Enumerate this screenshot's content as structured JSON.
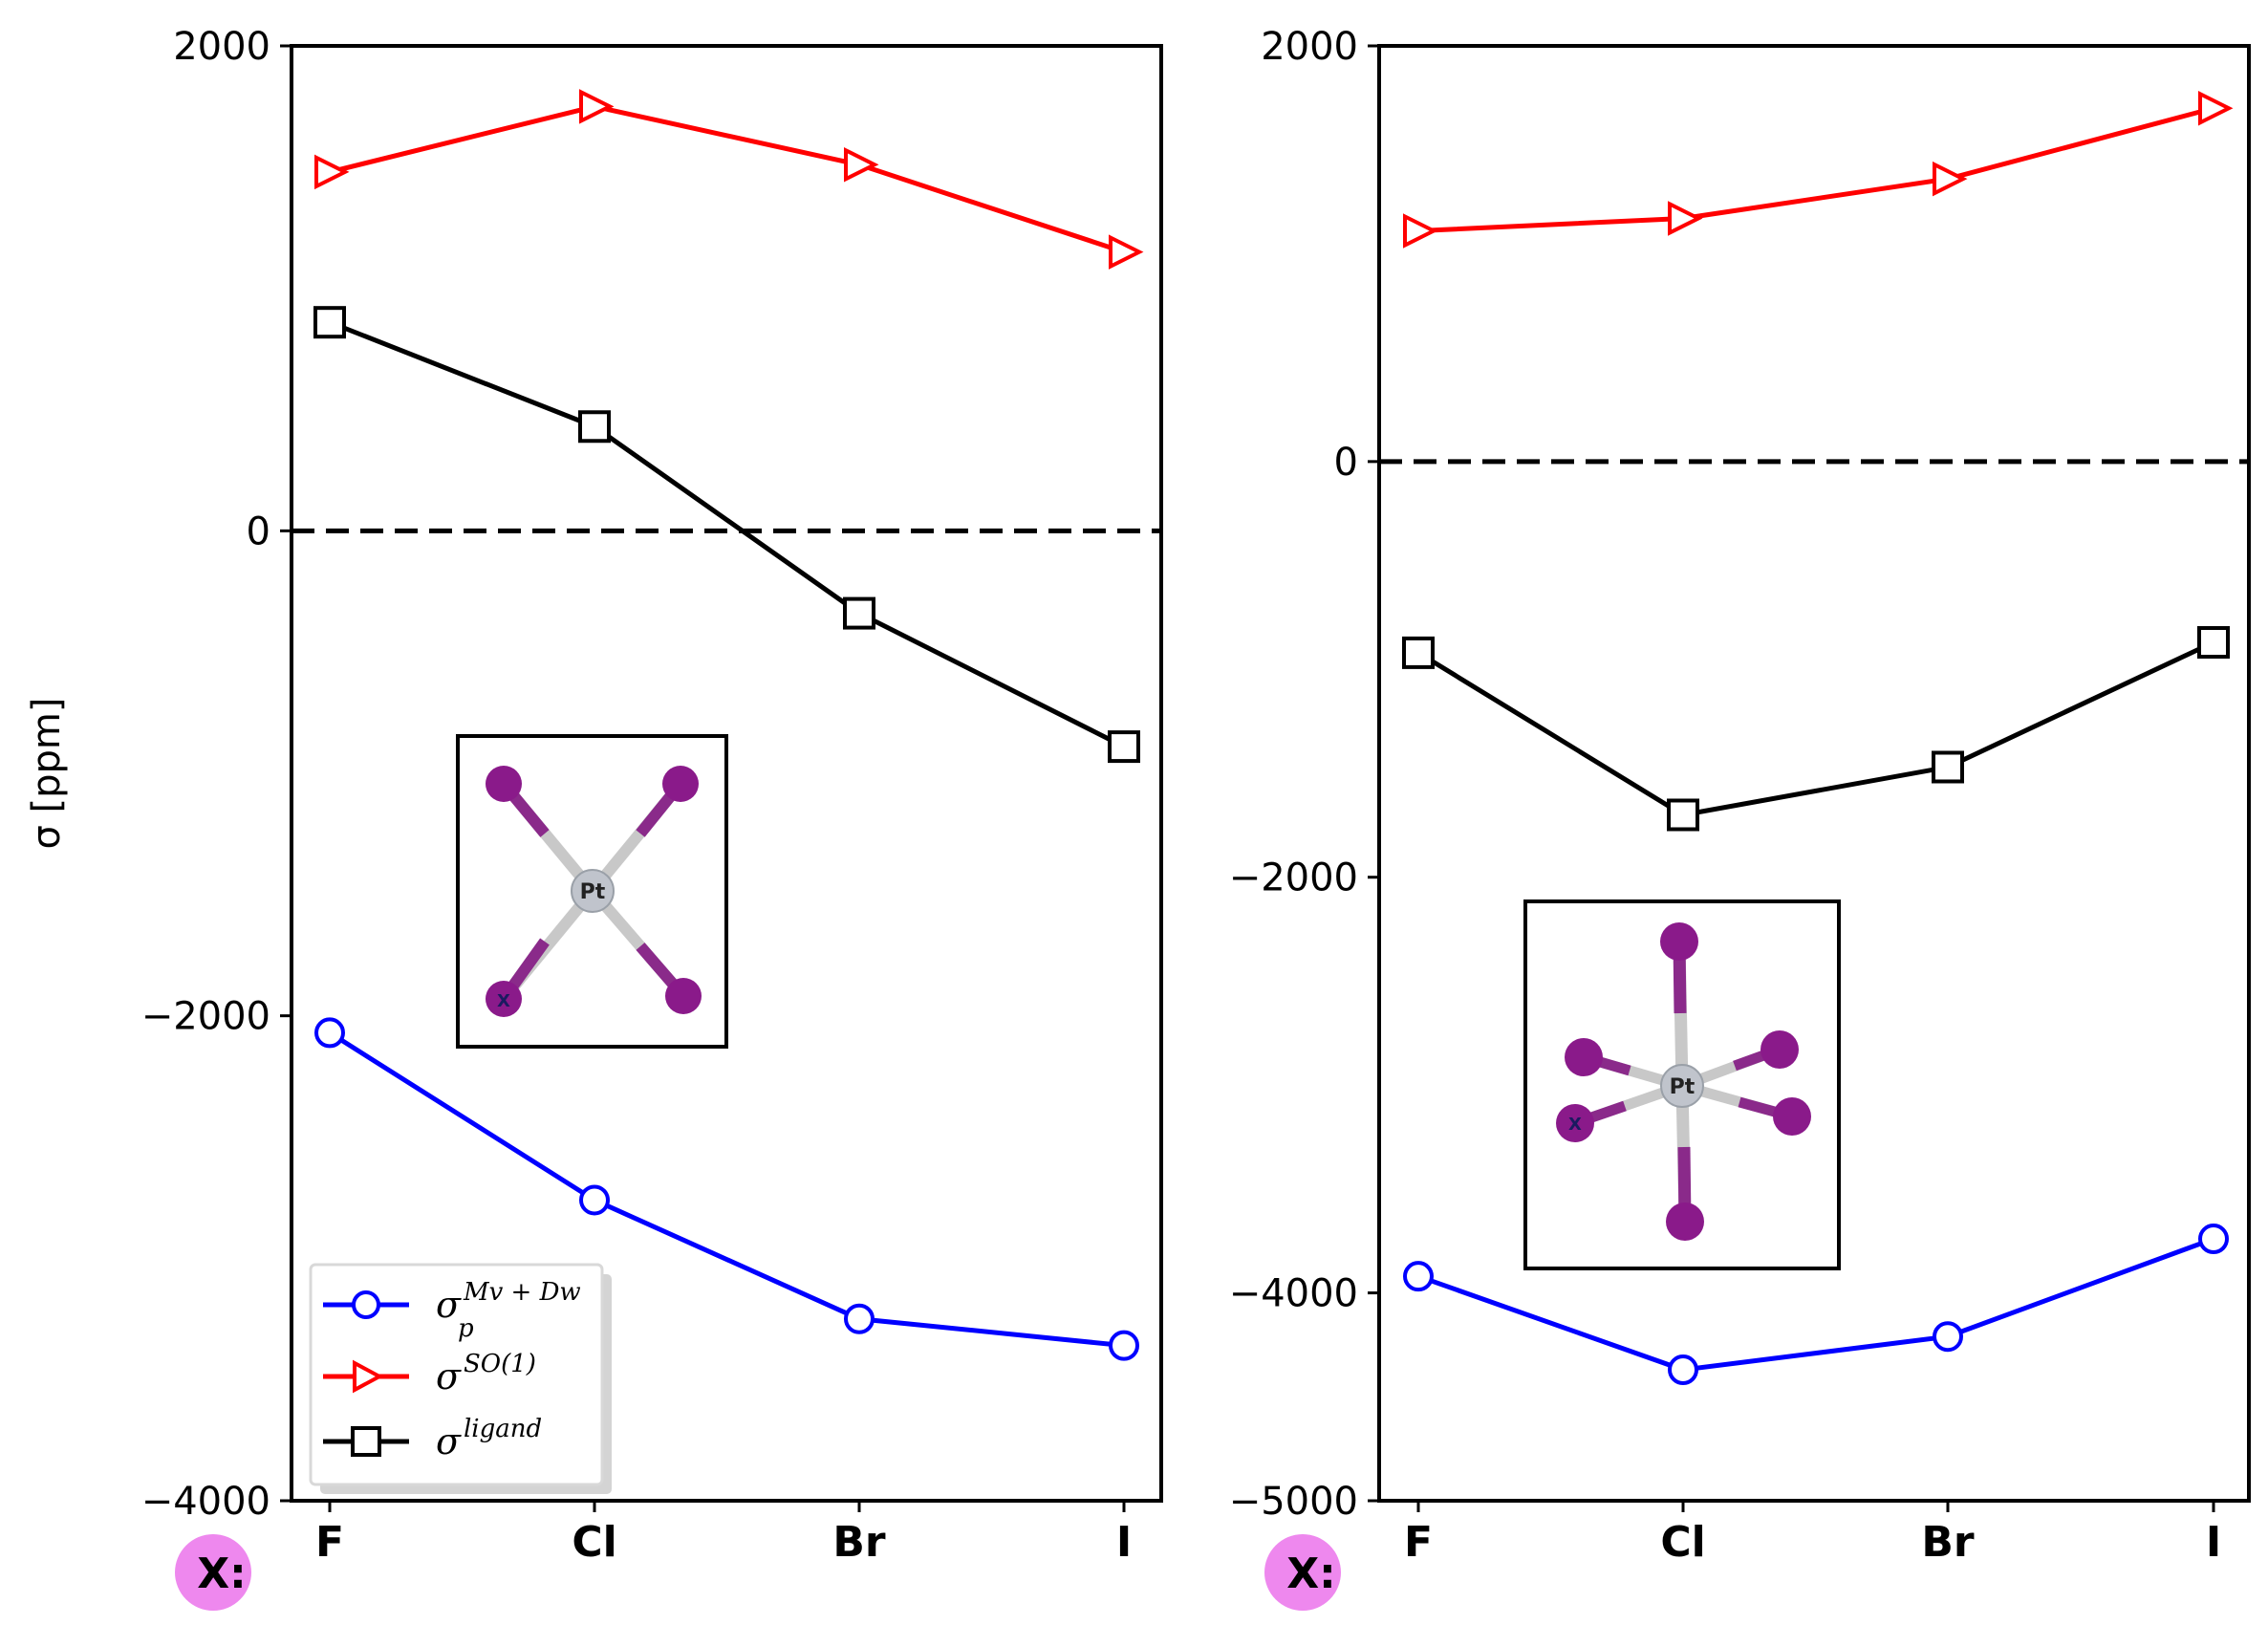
{
  "chart_data": [
    {
      "type": "line",
      "panel": "left",
      "categories": [
        "F",
        "Cl",
        "Br",
        "I"
      ],
      "category_prefix": "X:",
      "ylabel": "σ [ppm]",
      "ylim": [
        -4000,
        2000
      ],
      "yticks": [
        2000,
        0,
        -2000,
        -4000
      ],
      "ytick_labels": [
        "2000",
        "0",
        "−2000",
        "−4000"
      ],
      "reference_line": 0,
      "series": [
        {
          "name": "σ_p^{Mv+Dw}",
          "color": "#0000ff",
          "marker": "circle",
          "values": [
            -2070,
            -2760,
            -3250,
            -3360
          ]
        },
        {
          "name": "σ^{SO(1)}",
          "color": "#ff0000",
          "marker": "triangle-right",
          "values": [
            1480,
            1750,
            1510,
            1150
          ]
        },
        {
          "name": "σ^{ligand}",
          "color": "#000000",
          "marker": "square",
          "values": [
            860,
            430,
            -340,
            -890
          ]
        }
      ],
      "legend": {
        "position": "lower-left",
        "entries": [
          {
            "base": "σ",
            "sub": "p",
            "sup": "Mv + Dw"
          },
          {
            "base": "σ",
            "sub": "",
            "sup": "SO(1)"
          },
          {
            "base": "σ",
            "sub": "",
            "sup": "ligand"
          }
        ]
      },
      "inset": {
        "center_atom": "Pt",
        "ligand_label": "X",
        "geometry": "square-planar"
      }
    },
    {
      "type": "line",
      "panel": "right",
      "categories": [
        "F",
        "Cl",
        "Br",
        "I"
      ],
      "category_prefix": "X:",
      "ylim": [
        -5000,
        2000
      ],
      "yticks": [
        2000,
        0,
        -2000,
        -4000,
        -5000
      ],
      "ytick_labels": [
        "2000",
        "0",
        "−2000",
        "−4000",
        "−5000"
      ],
      "reference_line": 0,
      "series": [
        {
          "name": "σ_p^{Mv+Dw}",
          "color": "#0000ff",
          "marker": "circle",
          "values": [
            -3920,
            -4370,
            -4210,
            -3740
          ]
        },
        {
          "name": "σ^{SO(1)}",
          "color": "#ff0000",
          "marker": "triangle-right",
          "values": [
            1110,
            1170,
            1360,
            1700
          ]
        },
        {
          "name": "σ^{ligand}",
          "color": "#000000",
          "marker": "square",
          "values": [
            -920,
            -1700,
            -1470,
            -870
          ]
        }
      ],
      "inset": {
        "center_atom": "Pt",
        "ligand_label": "X",
        "geometry": "octahedral"
      }
    }
  ]
}
